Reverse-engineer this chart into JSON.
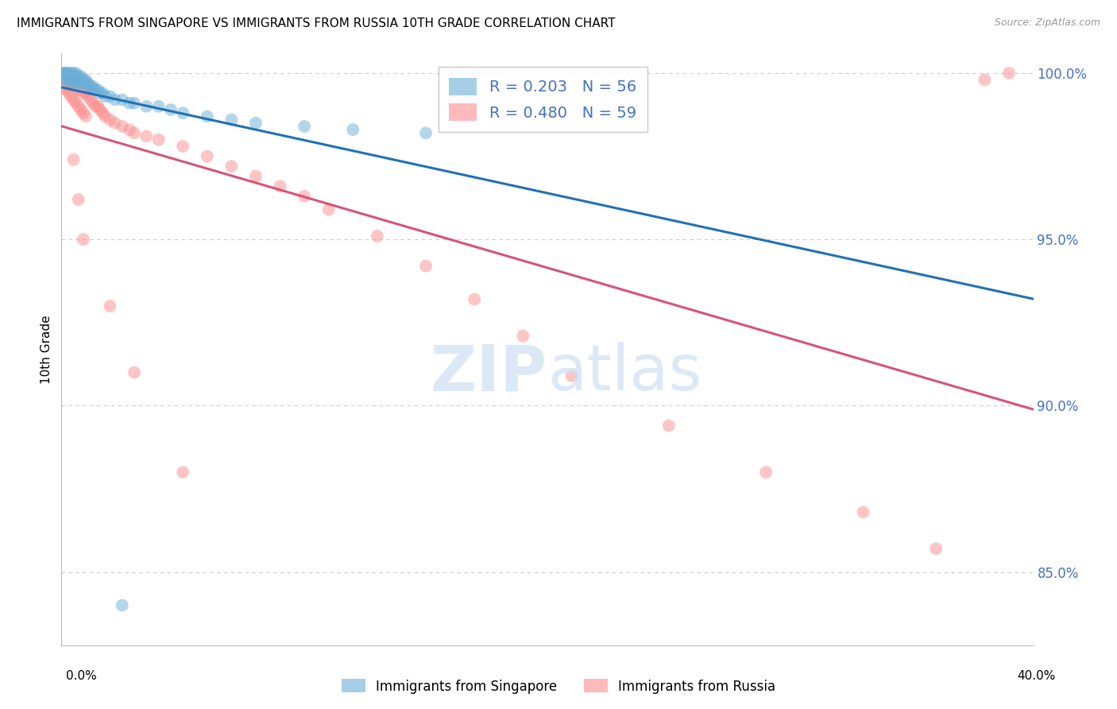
{
  "title": "IMMIGRANTS FROM SINGAPORE VS IMMIGRANTS FROM RUSSIA 10TH GRADE CORRELATION CHART",
  "source": "Source: ZipAtlas.com",
  "ylabel": "10th Grade",
  "x_min": 0.0,
  "x_max": 0.4,
  "y_min": 0.828,
  "y_max": 1.006,
  "singapore_color": "#6baed6",
  "russia_color": "#fc8d8d",
  "singapore_R": 0.203,
  "singapore_N": 56,
  "russia_R": 0.48,
  "russia_N": 59,
  "tick_label_color": "#4472c4",
  "grid_color": "#cccccc",
  "singapore_line_color": "#2171b5",
  "russia_line_color": "#d6547a",
  "singapore_x": [
    0.001,
    0.001,
    0.001,
    0.002,
    0.002,
    0.002,
    0.002,
    0.003,
    0.003,
    0.003,
    0.003,
    0.004,
    0.004,
    0.004,
    0.005,
    0.005,
    0.005,
    0.006,
    0.006,
    0.006,
    0.006,
    0.007,
    0.007,
    0.007,
    0.008,
    0.008,
    0.009,
    0.009,
    0.01,
    0.01,
    0.011,
    0.011,
    0.012,
    0.013,
    0.013,
    0.014,
    0.015,
    0.016,
    0.017,
    0.018,
    0.02,
    0.022,
    0.025,
    0.028,
    0.03,
    0.035,
    0.04,
    0.045,
    0.05,
    0.06,
    0.07,
    0.08,
    0.1,
    0.12,
    0.15,
    0.025
  ],
  "singapore_y": [
    1.0,
    1.0,
    0.999,
    1.0,
    1.0,
    0.999,
    0.998,
    1.0,
    0.999,
    0.998,
    0.997,
    1.0,
    0.999,
    0.998,
    1.0,
    0.999,
    0.998,
    1.0,
    0.999,
    0.998,
    0.997,
    0.999,
    0.998,
    0.997,
    0.999,
    0.997,
    0.998,
    0.997,
    0.998,
    0.997,
    0.997,
    0.996,
    0.996,
    0.996,
    0.995,
    0.995,
    0.995,
    0.994,
    0.994,
    0.993,
    0.993,
    0.992,
    0.992,
    0.991,
    0.991,
    0.99,
    0.99,
    0.989,
    0.988,
    0.987,
    0.986,
    0.985,
    0.984,
    0.983,
    0.982,
    0.84
  ],
  "russia_x": [
    0.001,
    0.001,
    0.002,
    0.002,
    0.003,
    0.003,
    0.004,
    0.004,
    0.005,
    0.005,
    0.006,
    0.006,
    0.007,
    0.007,
    0.008,
    0.008,
    0.009,
    0.009,
    0.01,
    0.01,
    0.011,
    0.012,
    0.013,
    0.014,
    0.015,
    0.016,
    0.017,
    0.018,
    0.02,
    0.022,
    0.025,
    0.028,
    0.03,
    0.035,
    0.04,
    0.05,
    0.06,
    0.07,
    0.08,
    0.09,
    0.1,
    0.11,
    0.13,
    0.15,
    0.17,
    0.19,
    0.21,
    0.25,
    0.29,
    0.33,
    0.36,
    0.005,
    0.007,
    0.009,
    0.02,
    0.03,
    0.05,
    0.39,
    0.38
  ],
  "russia_y": [
    0.998,
    0.996,
    0.998,
    0.995,
    0.997,
    0.994,
    0.997,
    0.993,
    0.997,
    0.992,
    0.996,
    0.991,
    0.995,
    0.99,
    0.995,
    0.989,
    0.994,
    0.988,
    0.994,
    0.987,
    0.993,
    0.992,
    0.991,
    0.99,
    0.99,
    0.989,
    0.988,
    0.987,
    0.986,
    0.985,
    0.984,
    0.983,
    0.982,
    0.981,
    0.98,
    0.978,
    0.975,
    0.972,
    0.969,
    0.966,
    0.963,
    0.959,
    0.951,
    0.942,
    0.932,
    0.921,
    0.909,
    0.894,
    0.88,
    0.868,
    0.857,
    0.974,
    0.962,
    0.95,
    0.93,
    0.91,
    0.88,
    1.0,
    0.998
  ],
  "watermark_zip": "ZIP",
  "watermark_atlas": "atlas"
}
